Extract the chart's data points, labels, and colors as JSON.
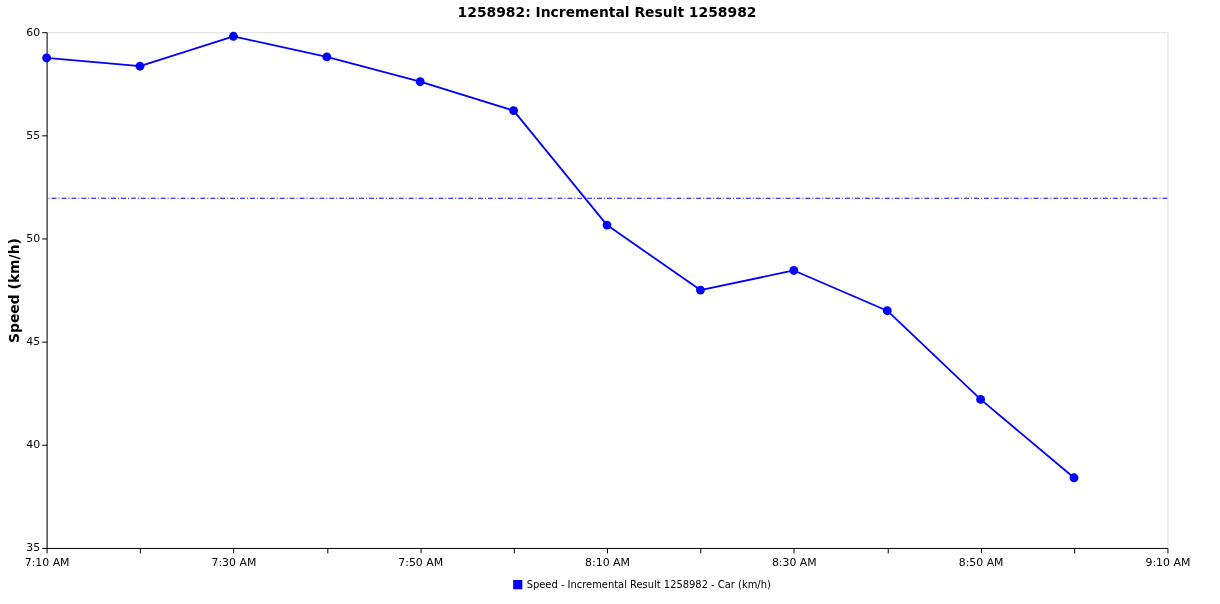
{
  "chart_data": {
    "type": "line",
    "title": "1258982: Incremental Result 1258982",
    "ylabel": "Speed (km/h)",
    "x": [
      7.16667,
      7.33333,
      7.5,
      7.66667,
      7.83333,
      8.0,
      8.16667,
      8.33333,
      8.5,
      8.66667,
      8.83333,
      9.0
    ],
    "series": [
      {
        "name": "Speed - Incremental Result 1258982 - Car (km/h)",
        "color": "#0000ff",
        "values": [
          58.75,
          58.35,
          59.8,
          58.8,
          57.6,
          56.2,
          50.65,
          47.5,
          48.45,
          46.5,
          42.2,
          38.4
        ]
      }
    ],
    "xlim": [
      7.16667,
      9.16667
    ],
    "xticks": [
      {
        "value": 7.16667,
        "label": "7:10 AM"
      },
      {
        "value": 7.33333,
        "label": null
      },
      {
        "value": 7.5,
        "label": "7:30 AM"
      },
      {
        "value": 7.66667,
        "label": null
      },
      {
        "value": 7.83333,
        "label": "7:50 AM"
      },
      {
        "value": 8.0,
        "label": null
      },
      {
        "value": 8.16667,
        "label": "8:10 AM"
      },
      {
        "value": 8.33333,
        "label": null
      },
      {
        "value": 8.5,
        "label": "8:30 AM"
      },
      {
        "value": 8.66667,
        "label": null
      },
      {
        "value": 8.83333,
        "label": "8:50 AM"
      },
      {
        "value": 9.0,
        "label": null
      },
      {
        "value": 9.16667,
        "label": "9:10 AM"
      }
    ],
    "ylim": [
      35,
      60
    ],
    "yticks": [
      35,
      40,
      45,
      50,
      55,
      60
    ],
    "ref_lines": [
      {
        "axis": "y",
        "value": 51.95,
        "color": "#0000ff",
        "line_style": "dashed"
      }
    ],
    "grid": false,
    "legend": "bottom",
    "marker": "circle",
    "line_style": "solid"
  }
}
